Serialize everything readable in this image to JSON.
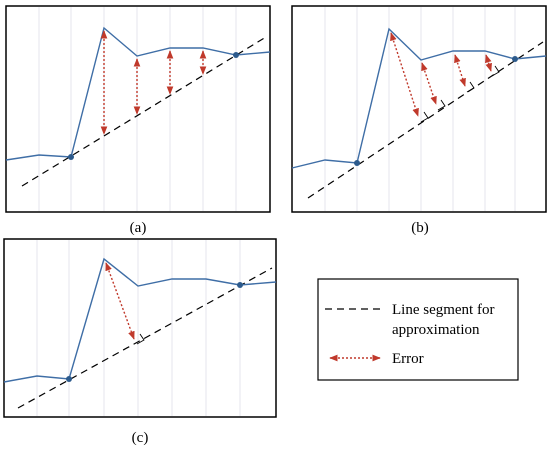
{
  "captions": {
    "a": "(a)",
    "b": "(b)",
    "c": "(c)"
  },
  "legend": {
    "line_label_1": "Line segment for",
    "line_label_2": "approximation",
    "error_label": "Error"
  },
  "colors": {
    "series": "#3f6ea6",
    "point": "#2c5a8c",
    "error": "#c0392b",
    "dashed": "#000000",
    "grid": "#e6e6ee",
    "frame": "#000000"
  },
  "icons": {
    "dashed_line": "dashed-line-icon",
    "error_arrow": "double-headed-dotted-arrow-icon",
    "right_angle": "right-angle-marker-icon"
  }
}
